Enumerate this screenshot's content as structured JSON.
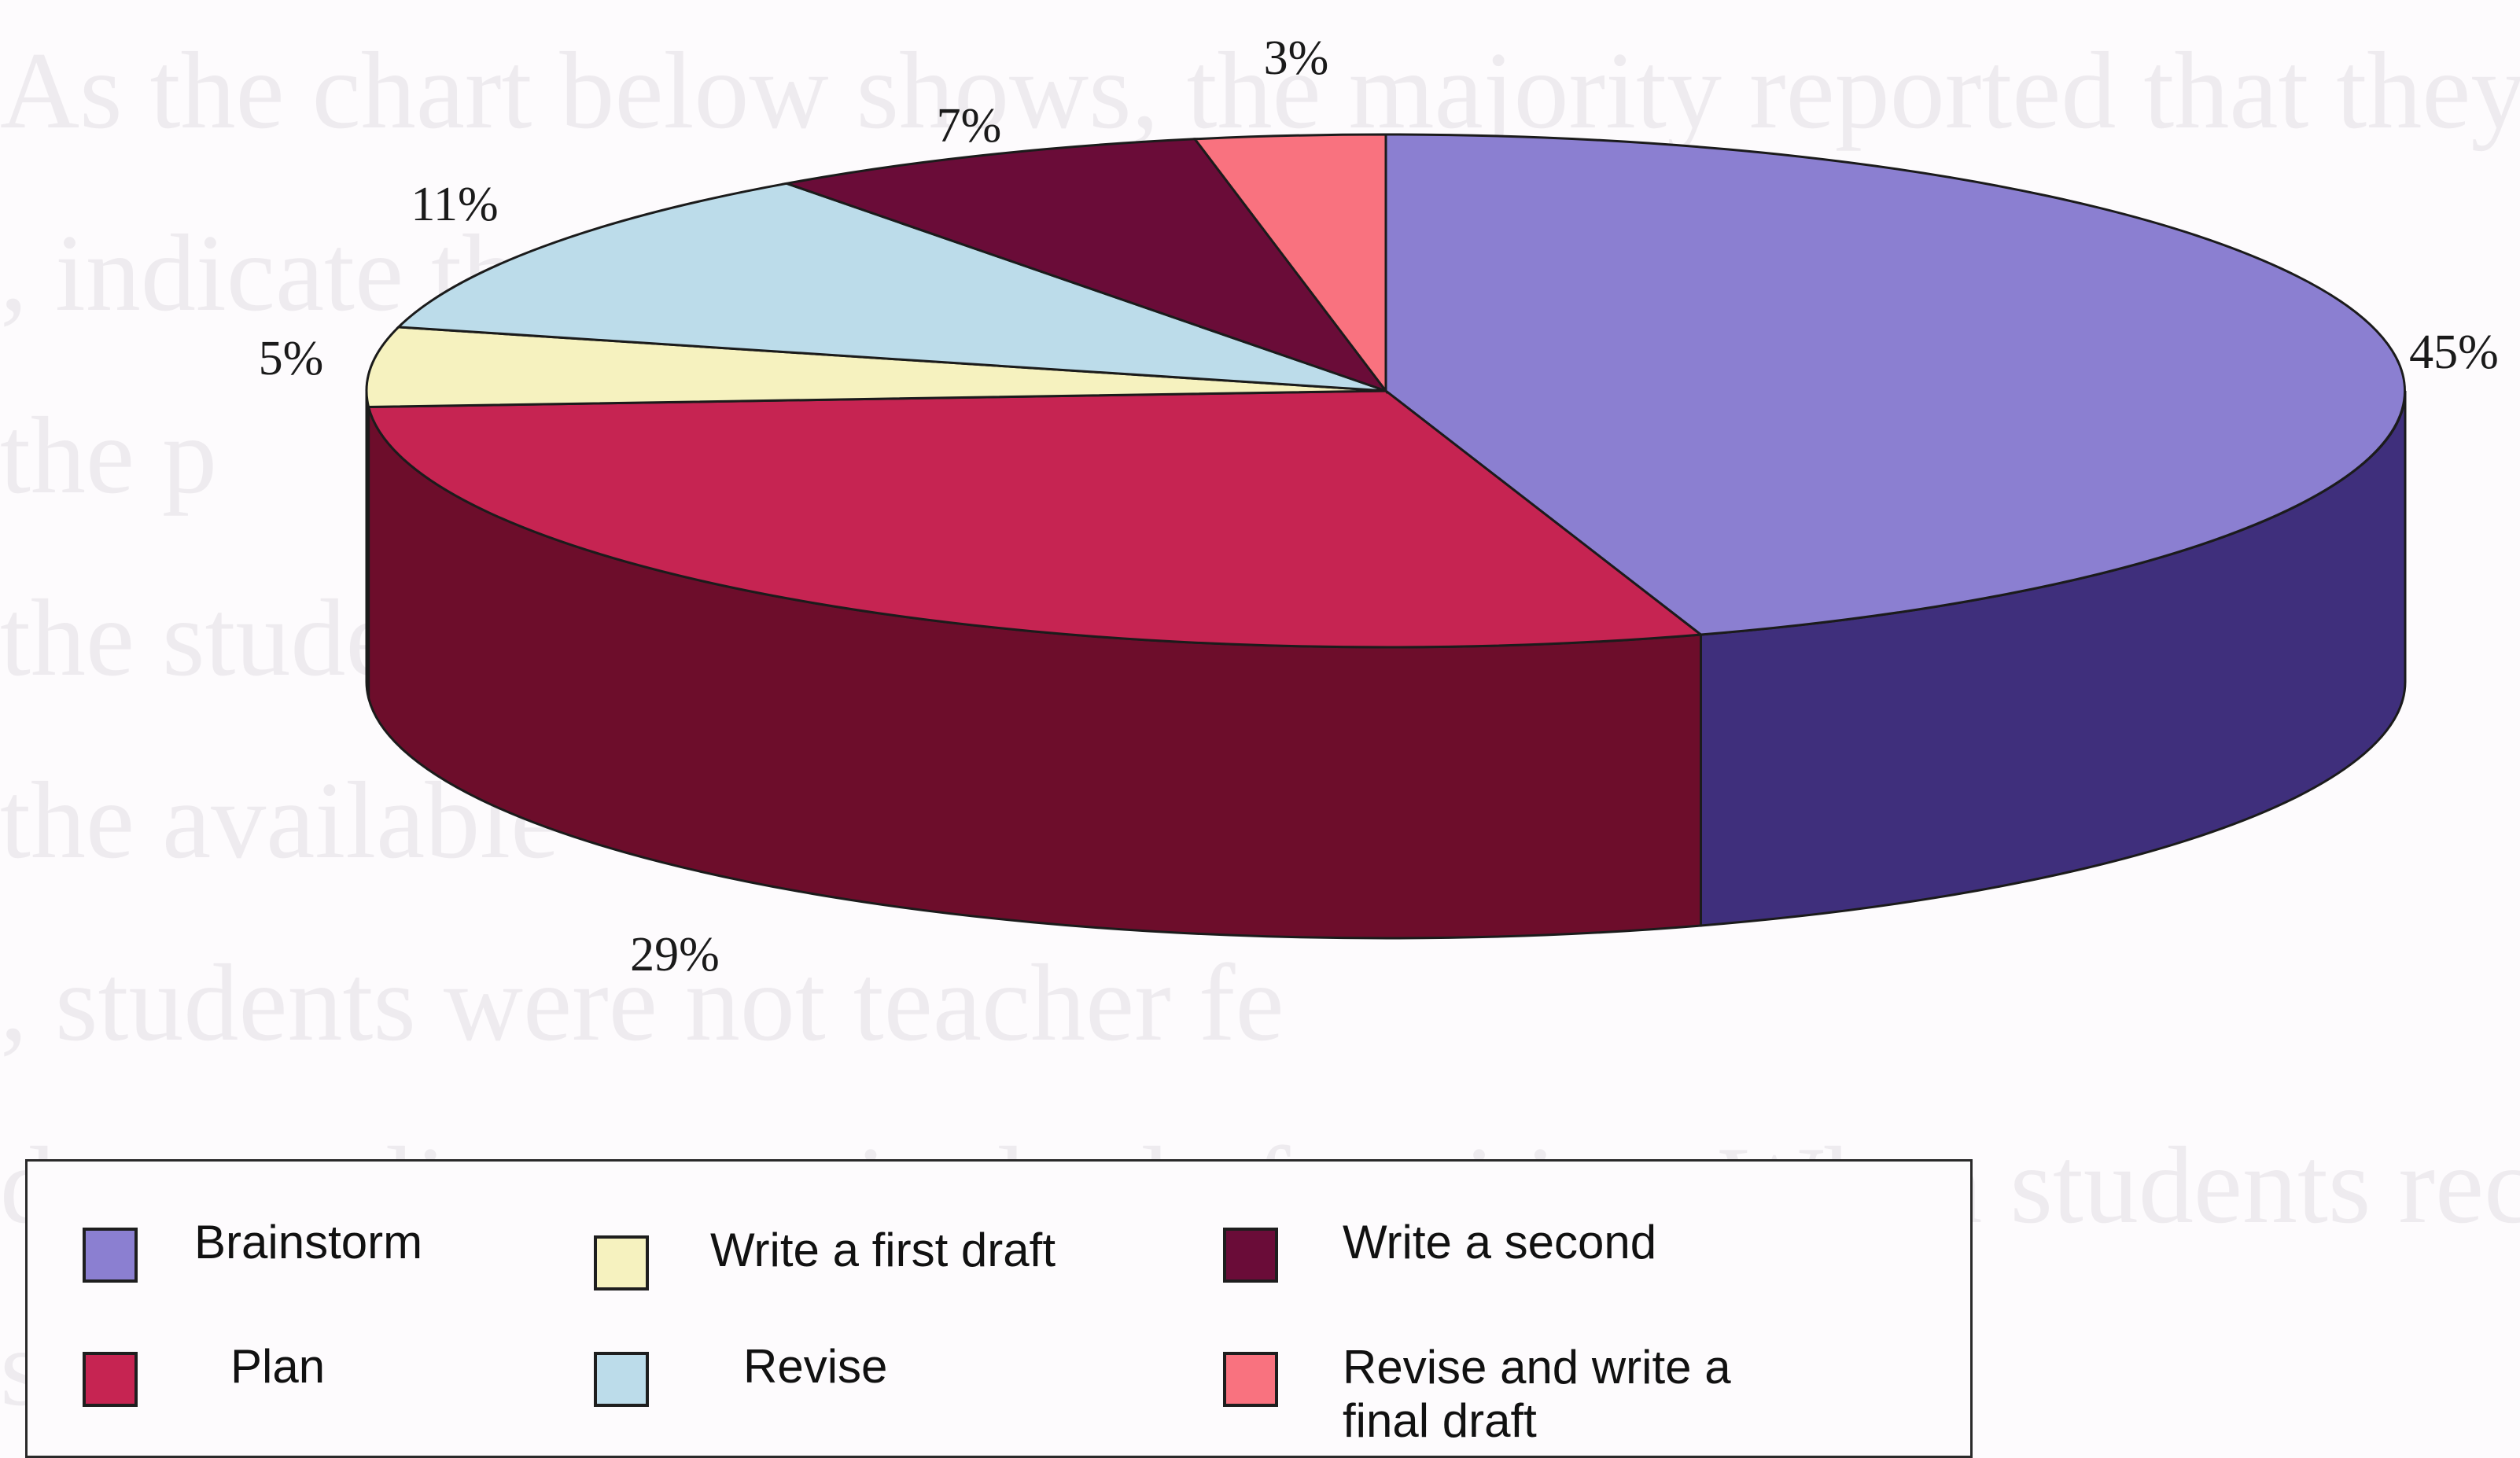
{
  "background_text": [
    "As the chart below shows, the majority reported that they n",
    ", indicate that                              had pro",
    "the p                                                      ",
    "the student                                           ",
    "the available                                            ",
    ", students were not                          teacher fe",
    "due to reliance on single-draft writing. When students receive",
    "                           scope for follow-u"
  ],
  "chart_data": {
    "type": "pie",
    "style": "3d-exploded-perspective",
    "slices": [
      {
        "name": "Brainstorm",
        "value": 45,
        "label": "45%",
        "color": "#8b7fd1",
        "side_color": "#3f2f7c"
      },
      {
        "name": "Plan",
        "value": 29,
        "label": "29%",
        "color": "#c62452",
        "side_color": "#6d0d2b"
      },
      {
        "name": "Write a first draft",
        "value": 5,
        "label": "5%",
        "color": "#f6f2bf",
        "side_color": "#9e9a70"
      },
      {
        "name": "Revise",
        "value": 11,
        "label": "11%",
        "color": "#bcdcea",
        "side_color": "#6e8f9c"
      },
      {
        "name": "Write a second",
        "value": 7,
        "label": "7%",
        "color": "#6a0c38",
        "side_color": "#3a051e"
      },
      {
        "name": "Revise and write a final draft",
        "value": 3,
        "label": "3%",
        "color": "#f9727f",
        "side_color": "#a1424c"
      }
    ],
    "legend": {
      "placement": "bottom-left",
      "items": [
        {
          "label": "Brainstorm",
          "color": "#8b7fd1"
        },
        {
          "label": "Write a first draft",
          "color": "#f6f2bf"
        },
        {
          "label": "Write a second",
          "color": "#6a0c38"
        },
        {
          "label": "Plan",
          "color": "#c62452"
        },
        {
          "label": "Revise",
          "color": "#bcdcea"
        },
        {
          "label": "Revise and write a final draft",
          "color": "#f9727f"
        }
      ]
    }
  }
}
